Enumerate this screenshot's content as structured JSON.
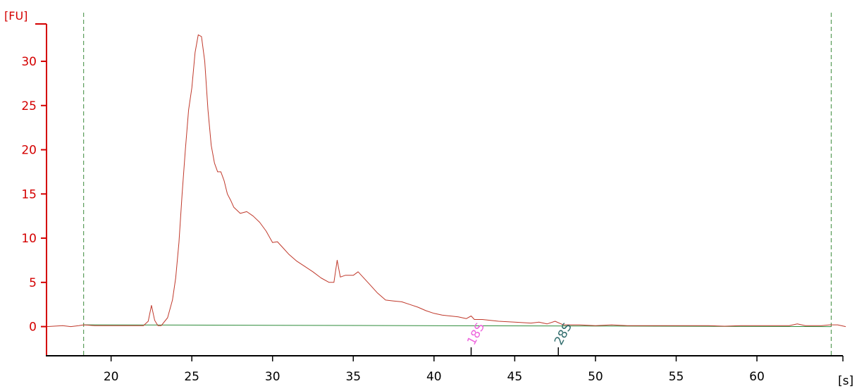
{
  "chart_data": {
    "type": "line",
    "title": "",
    "xlabel": "[s]",
    "ylabel": "[FU]",
    "xlim": [
      16.0,
      65.5
    ],
    "ylim": [
      -3.3,
      35.5
    ],
    "x_ticks": [
      20,
      25,
      30,
      35,
      40,
      45,
      50,
      55,
      60
    ],
    "y_ticks": [
      0,
      5,
      10,
      15,
      20,
      25,
      30
    ],
    "grid": false,
    "colors": {
      "signal": "#c0392b",
      "baseline": "#2e8b3a",
      "guide": "#3a8a3a",
      "y_axis": "#d40000",
      "x_axis": "#000000",
      "marker_18s": "#ee66dd",
      "marker_28s": "#2f6b6b"
    },
    "guide_lines_x": [
      18.3,
      64.6
    ],
    "markers": [
      {
        "label": "18S",
        "x": 42.3
      },
      {
        "label": "28S",
        "x": 47.7
      }
    ],
    "series": [
      {
        "name": "",
        "x": [
          16.0,
          17.0,
          17.5,
          18.0,
          18.3,
          19.0,
          20.0,
          21.0,
          22.0,
          22.3,
          22.5,
          22.7,
          22.9,
          23.1,
          23.5,
          23.8,
          24.0,
          24.2,
          24.4,
          24.6,
          24.8,
          25.0,
          25.2,
          25.4,
          25.6,
          25.8,
          26.0,
          26.2,
          26.4,
          26.6,
          26.8,
          27.0,
          27.2,
          27.4,
          27.6,
          28.0,
          28.4,
          28.8,
          29.2,
          29.6,
          30.0,
          30.3,
          30.6,
          31.0,
          31.5,
          32.0,
          32.5,
          33.0,
          33.5,
          33.8,
          34.0,
          34.2,
          34.5,
          35.0,
          35.3,
          35.6,
          36.0,
          36.5,
          37.0,
          37.5,
          38.0,
          38.5,
          39.0,
          39.5,
          40.0,
          40.5,
          41.0,
          41.5,
          42.0,
          42.3,
          42.5,
          43.0,
          44.0,
          45.0,
          46.0,
          46.5,
          47.0,
          47.5,
          48.0,
          49.0,
          50.0,
          51.0,
          52.0,
          53.0,
          54.0,
          55.0,
          56.0,
          57.0,
          58.0,
          59.0,
          60.0,
          61.0,
          62.0,
          62.5,
          63.0,
          64.0,
          64.5,
          65.0,
          65.5
        ],
        "y": [
          0.0,
          0.1,
          0.0,
          0.1,
          0.2,
          0.1,
          0.1,
          0.1,
          0.1,
          0.6,
          2.4,
          0.7,
          0.1,
          0.1,
          1.0,
          3.0,
          5.5,
          9.5,
          15.0,
          20.0,
          24.5,
          27.0,
          31.0,
          33.0,
          32.8,
          30.0,
          24.5,
          20.5,
          18.5,
          17.5,
          17.5,
          16.5,
          15.0,
          14.3,
          13.5,
          12.8,
          13.0,
          12.5,
          11.8,
          10.8,
          9.5,
          9.6,
          9.0,
          8.2,
          7.4,
          6.8,
          6.2,
          5.5,
          5.0,
          5.0,
          7.5,
          5.6,
          5.8,
          5.8,
          6.2,
          5.6,
          4.8,
          3.8,
          3.0,
          2.9,
          2.8,
          2.5,
          2.2,
          1.8,
          1.5,
          1.3,
          1.2,
          1.1,
          0.9,
          1.2,
          0.8,
          0.8,
          0.6,
          0.5,
          0.4,
          0.5,
          0.3,
          0.6,
          0.2,
          0.2,
          0.1,
          0.2,
          0.1,
          0.1,
          0.1,
          0.1,
          0.1,
          0.1,
          0.05,
          0.1,
          0.1,
          0.1,
          0.1,
          0.3,
          0.1,
          0.1,
          0.2,
          0.2,
          0.0
        ]
      },
      {
        "name": "",
        "x": [
          18.3,
          64.6
        ],
        "y": [
          0.2,
          0.0
        ]
      }
    ]
  }
}
